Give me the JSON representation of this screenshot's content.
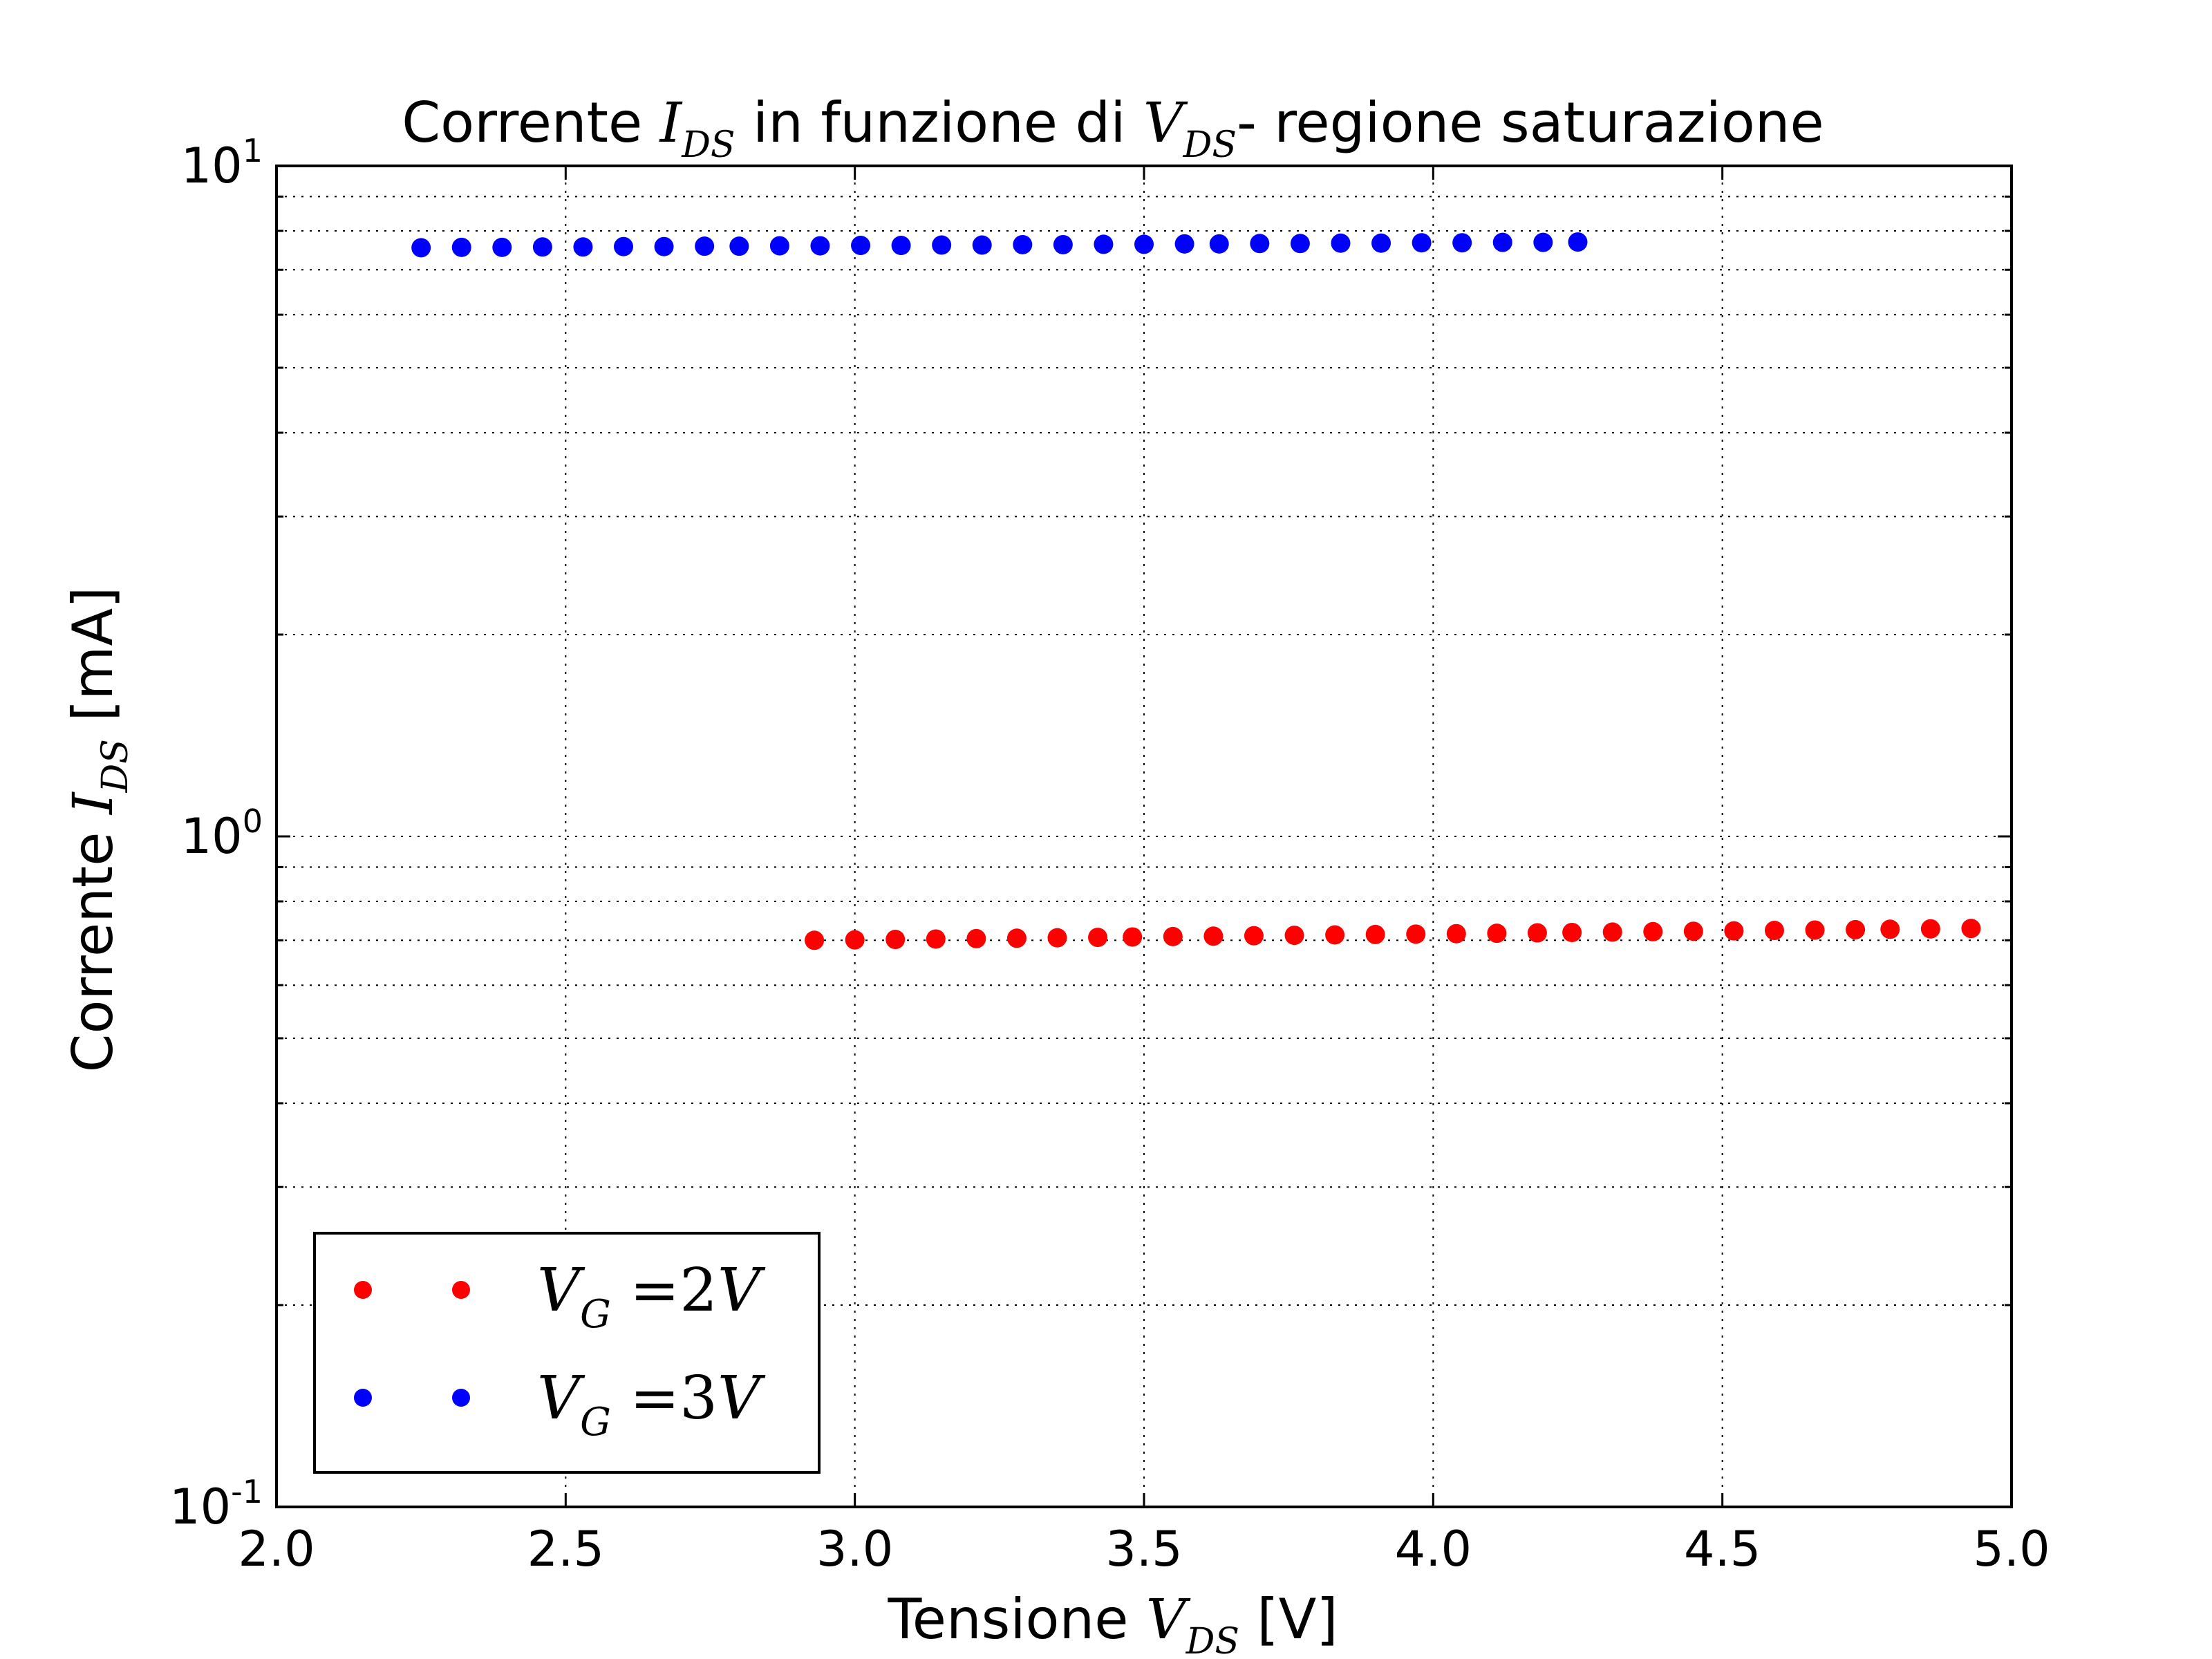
{
  "chart_data": {
    "type": "scatter",
    "title": {
      "prefix": "Corrente ",
      "var1": "I",
      "var1_sub": "DS",
      "middle": " in funzione di ",
      "var2": "V",
      "var2_sub": "DS",
      "suffix": "- regione saturazione"
    },
    "xlabel": {
      "prefix": "Tensione ",
      "var": "V",
      "var_sub": "DS",
      "suffix": " [V]"
    },
    "ylabel": {
      "prefix": "Corrente ",
      "var": "I",
      "var_sub": "DS",
      "suffix": " [mA]"
    },
    "xlim": [
      2.0,
      5.0
    ],
    "ylim": [
      0.1,
      10
    ],
    "yscale": "log",
    "grid": true,
    "legend_position": "lower-left",
    "x_ticks": [
      "2.0",
      "2.5",
      "3.0",
      "3.5",
      "4.0",
      "4.5",
      "5.0"
    ],
    "y_ticks": [
      {
        "base": "10",
        "exp": "-1",
        "value": 0.1
      },
      {
        "base": "10",
        "exp": "0",
        "value": 1
      },
      {
        "base": "10",
        "exp": "1",
        "value": 10
      }
    ],
    "series": [
      {
        "name": "V_G = 2V",
        "legend": {
          "var": "V",
          "sub": "G",
          "eq": " =2",
          "unit": "V"
        },
        "color": "#ff0000",
        "x": [
          2.93,
          3.0,
          3.07,
          3.14,
          3.21,
          3.28,
          3.35,
          3.42,
          3.48,
          3.55,
          3.62,
          3.69,
          3.76,
          3.83,
          3.9,
          3.97,
          4.04,
          4.11,
          4.18,
          4.24,
          4.31,
          4.38,
          4.45,
          4.52,
          4.59,
          4.66,
          4.73,
          4.79,
          4.86,
          4.93
        ],
        "y": [
          0.7,
          0.701,
          0.702,
          0.703,
          0.704,
          0.705,
          0.706,
          0.707,
          0.708,
          0.709,
          0.71,
          0.711,
          0.712,
          0.713,
          0.714,
          0.715,
          0.716,
          0.717,
          0.718,
          0.719,
          0.72,
          0.721,
          0.722,
          0.723,
          0.724,
          0.725,
          0.726,
          0.727,
          0.728,
          0.729
        ]
      },
      {
        "name": "V_G = 3V",
        "legend": {
          "var": "V",
          "sub": "G",
          "eq": " =3",
          "unit": "V"
        },
        "color": "#0000ff",
        "x": [
          2.25,
          2.32,
          2.39,
          2.46,
          2.53,
          2.6,
          2.67,
          2.74,
          2.8,
          2.87,
          2.94,
          3.01,
          3.08,
          3.15,
          3.22,
          3.29,
          3.36,
          3.43,
          3.5,
          3.57,
          3.63,
          3.7,
          3.77,
          3.84,
          3.91,
          3.98,
          4.05,
          4.12,
          4.19,
          4.25
        ],
        "y": [
          7.55,
          7.56,
          7.56,
          7.57,
          7.57,
          7.58,
          7.58,
          7.59,
          7.59,
          7.6,
          7.6,
          7.61,
          7.61,
          7.62,
          7.62,
          7.63,
          7.63,
          7.64,
          7.64,
          7.65,
          7.65,
          7.66,
          7.66,
          7.67,
          7.67,
          7.68,
          7.68,
          7.69,
          7.69,
          7.7
        ]
      }
    ]
  }
}
